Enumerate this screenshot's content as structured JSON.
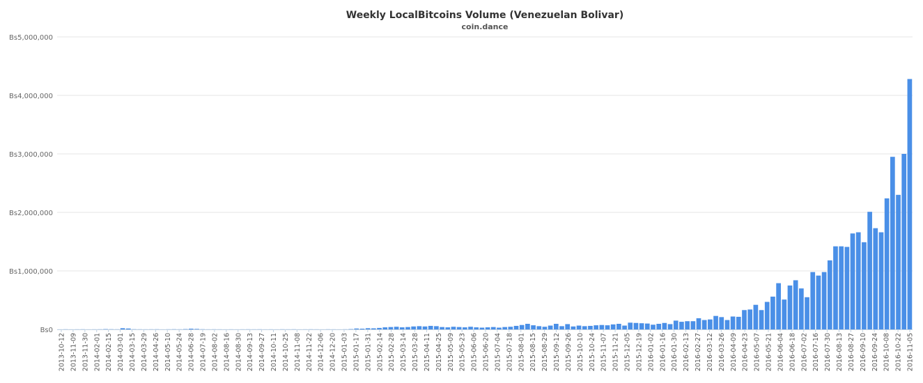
{
  "chart_data": {
    "type": "bar",
    "title": "Weekly LocalBitcoins Volume (Venezuelan Bolivar)",
    "subtitle": "coin.dance",
    "xlabel": "",
    "ylabel": "",
    "ylim": [
      0,
      5000000
    ],
    "grid": true,
    "bar_color": "#4a8fe7",
    "y_ticks": [
      {
        "value": 0,
        "label": "Bs0"
      },
      {
        "value": 1000000,
        "label": "Bs1,000,000"
      },
      {
        "value": 2000000,
        "label": "Bs2,000,000"
      },
      {
        "value": 3000000,
        "label": "Bs3,000,000"
      },
      {
        "value": 4000000,
        "label": "Bs4,000,000"
      },
      {
        "value": 5000000,
        "label": "Bs5,000,000"
      }
    ],
    "x_tick_labels": [
      "2013-10-12",
      "2013-11-09",
      "2013-11-30",
      "2014-02-01",
      "2014-02-15",
      "2014-03-01",
      "2014-03-15",
      "2014-03-29",
      "2014-04-26",
      "2014-05-10",
      "2014-05-24",
      "2014-06-28",
      "2014-07-19",
      "2014-08-02",
      "2014-08-16",
      "2014-08-30",
      "2014-09-13",
      "2014-09-27",
      "2014-10-11",
      "2014-10-25",
      "2014-11-08",
      "2014-11-22",
      "2014-12-06",
      "2014-12-20",
      "2015-01-03",
      "2015-01-17",
      "2015-01-31",
      "2015-02-14",
      "2015-02-28",
      "2015-03-14",
      "2015-03-28",
      "2015-04-11",
      "2015-04-25",
      "2015-05-09",
      "2015-05-23",
      "2015-06-06",
      "2015-06-20",
      "2015-07-04",
      "2015-07-18",
      "2015-08-01",
      "2015-08-15",
      "2015-08-29",
      "2015-09-12",
      "2015-09-26",
      "2015-10-10",
      "2015-10-24",
      "2015-11-07",
      "2015-11-21",
      "2015-12-05",
      "2015-12-19",
      "2016-01-02",
      "2016-01-16",
      "2016-01-30",
      "2016-02-13",
      "2016-02-27",
      "2016-03-12",
      "2016-03-26",
      "2016-04-09",
      "2016-04-23",
      "2016-05-07",
      "2016-05-21",
      "2016-06-04",
      "2016-06-18",
      "2016-07-02",
      "2016-07-16",
      "2016-07-30",
      "2016-08-13",
      "2016-08-27",
      "2016-09-10",
      "2016-09-24",
      "2016-10-08",
      "2016-10-22",
      "2016-11-05"
    ],
    "values": [
      1000,
      2000,
      1000,
      1500,
      2000,
      1000,
      1500,
      2000,
      5000,
      3000,
      2000,
      20000,
      15000,
      3000,
      2000,
      1500,
      2000,
      2500,
      1000,
      2000,
      3000,
      2000,
      5000,
      12000,
      8000,
      3000,
      1500,
      2000,
      1500,
      1000,
      1500,
      1000,
      1500,
      2000,
      1500,
      2000,
      1000,
      1500,
      1000,
      2000,
      1500,
      2000,
      1000,
      1500,
      2000,
      1500,
      1000,
      2000,
      1500,
      1000,
      2000,
      5000,
      15000,
      12000,
      20000,
      18000,
      25000,
      35000,
      40000,
      45000,
      35000,
      40000,
      50000,
      55000,
      50000,
      60000,
      55000,
      40000,
      35000,
      45000,
      40000,
      35000,
      45000,
      35000,
      30000,
      35000,
      40000,
      30000,
      40000,
      45000,
      60000,
      75000,
      95000,
      70000,
      55000,
      45000,
      65000,
      95000,
      55000,
      90000,
      50000,
      65000,
      55000,
      60000,
      70000,
      75000,
      70000,
      85000,
      95000,
      65000,
      115000,
      110000,
      105000,
      100000,
      80000,
      95000,
      110000,
      90000,
      150000,
      130000,
      140000,
      140000,
      190000,
      160000,
      170000,
      230000,
      210000,
      160000,
      220000,
      215000,
      330000,
      340000,
      420000,
      330000,
      470000,
      560000,
      790000,
      510000,
      750000,
      840000,
      700000,
      550000,
      980000,
      920000,
      980000,
      1180000,
      1420000,
      1420000,
      1410000,
      1640000,
      1660000,
      1490000,
      2010000,
      1730000,
      1660000,
      2240000,
      2950000,
      2300000,
      3000000,
      4280000
    ]
  }
}
